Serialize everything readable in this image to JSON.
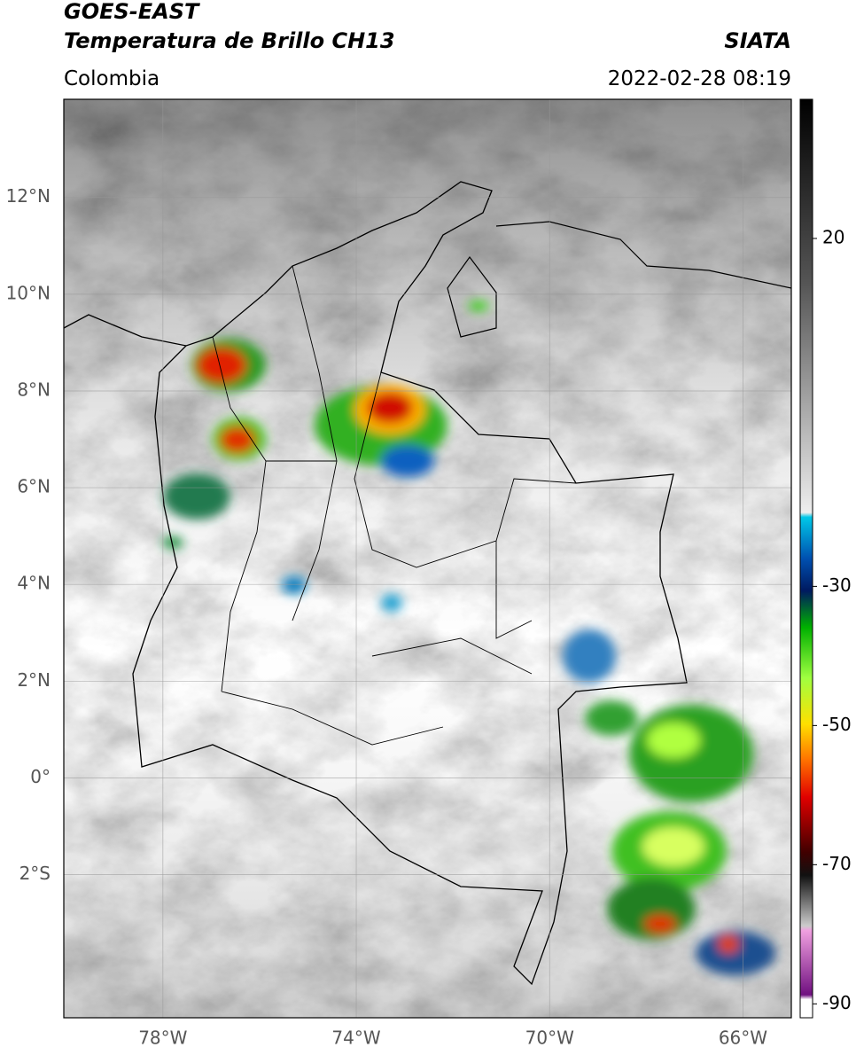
{
  "header": {
    "title": "GOES-EAST",
    "subtitle": "Temperatura de Brillo CH13",
    "source": "SIATA",
    "region": "Colombia",
    "timestamp": "2022-02-28 08:19"
  },
  "map": {
    "lon_range": [
      -80.05,
      -65
    ],
    "lat_range": [
      -4.96,
      14.03
    ],
    "lon_ticks": [
      {
        "value": -78,
        "label": "78°W"
      },
      {
        "value": -74,
        "label": "74°W"
      },
      {
        "value": -70,
        "label": "70°W"
      },
      {
        "value": -66,
        "label": "66°W"
      }
    ],
    "lat_ticks": [
      {
        "value": 12,
        "label": "12°N"
      },
      {
        "value": 10,
        "label": "10°N"
      },
      {
        "value": 8,
        "label": "8°N"
      },
      {
        "value": 6,
        "label": "6°N"
      },
      {
        "value": 4,
        "label": "4°N"
      },
      {
        "value": 2,
        "label": "2°N"
      },
      {
        "value": 0,
        "label": "0°"
      },
      {
        "value": -2,
        "label": "2°S"
      }
    ],
    "grid": true
  },
  "colorbar": {
    "range": [
      -92,
      40
    ],
    "ticks": [
      20,
      -30,
      -50,
      -70,
      -90
    ]
  }
}
